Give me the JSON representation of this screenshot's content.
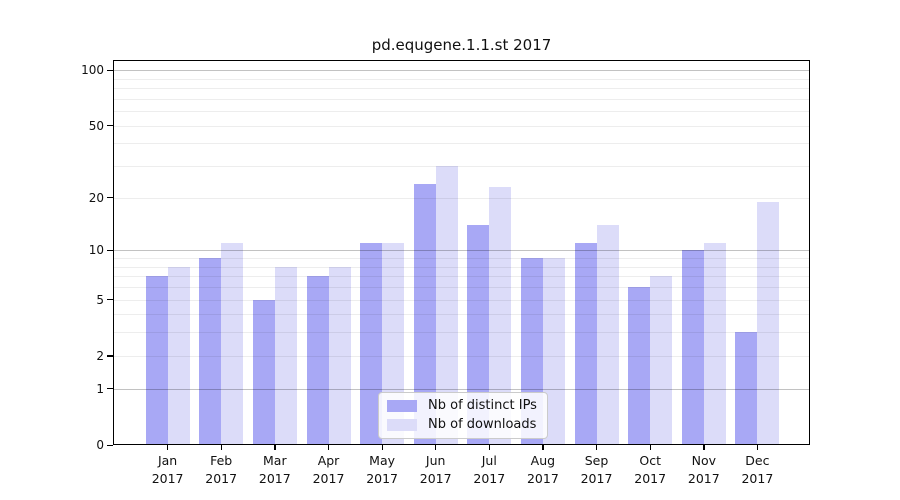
{
  "chart_data": {
    "type": "bar",
    "title": "pd.equgene.1.1.st 2017",
    "xlabel": "",
    "ylabel": "",
    "scale": "log1p",
    "ylim": [
      0,
      115
    ],
    "categories": [
      "Jan",
      "Feb",
      "Mar",
      "Apr",
      "May",
      "Jun",
      "Jul",
      "Aug",
      "Sep",
      "Oct",
      "Nov",
      "Dec"
    ],
    "x_tick_year": "2017",
    "series": [
      {
        "name": "Nb of distinct IPs",
        "color": "#a8a8f5",
        "values": [
          7,
          9,
          5,
          7,
          11,
          24,
          14,
          9,
          11,
          6,
          10,
          3
        ]
      },
      {
        "name": "Nb of downloads",
        "color": "#dcdcf9",
        "values": [
          8,
          11,
          8,
          8,
          11,
          30,
          23,
          9,
          14,
          7,
          11,
          19
        ]
      }
    ],
    "y_ticks": [
      100,
      50,
      20,
      10,
      5,
      2,
      1,
      0
    ],
    "gridlines": {
      "major": [
        1,
        10,
        100
      ],
      "minor": [
        2,
        3,
        4,
        5,
        6,
        7,
        8,
        9,
        20,
        30,
        40,
        50,
        60,
        70,
        80,
        90
      ]
    },
    "legend_position": "bottom-center",
    "grid": "on"
  },
  "colors": {
    "background": "#ffffff",
    "bar_distinct_ips": "#a8a8f5",
    "bar_downloads": "#dcdcf9",
    "spine": "#000000",
    "grid_major": "#c2c2c2",
    "grid_minor": "#ededed"
  }
}
